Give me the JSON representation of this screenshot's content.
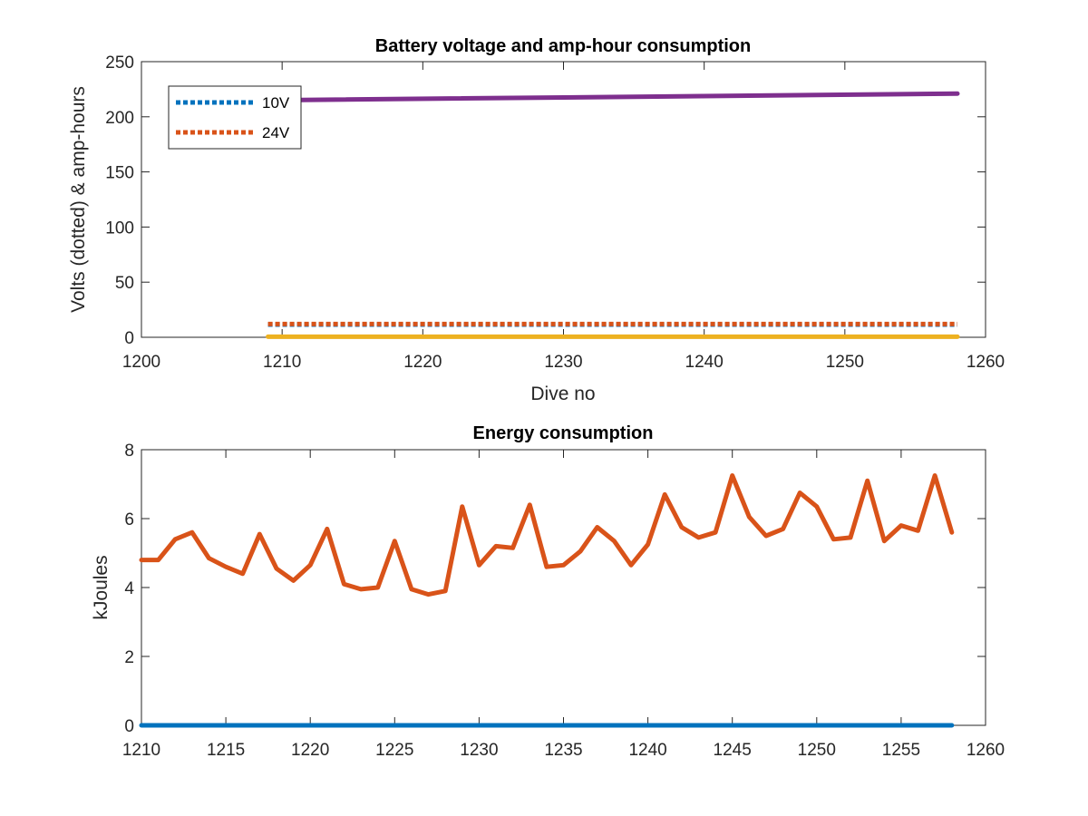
{
  "chart_data": [
    {
      "type": "line",
      "title": "Battery voltage and amp-hour consumption",
      "xlabel": "Dive no",
      "ylabel": "Volts (dotted) & amp-hours",
      "xlim": [
        1200,
        1260
      ],
      "ylim": [
        0,
        250
      ],
      "xticks": [
        "1200",
        "1210",
        "1220",
        "1230",
        "1240",
        "1250",
        "1260"
      ],
      "yticks": [
        "0",
        "50",
        "100",
        "150",
        "200",
        "250"
      ],
      "grid": false,
      "legend": {
        "placement": "top-left",
        "entries": [
          "10V",
          "24V"
        ]
      },
      "series": [
        {
          "name": "10V",
          "style": "dotted",
          "color": "#0072BD",
          "x": [
            1209,
            1258
          ],
          "y": [
            11.5,
            11.5
          ]
        },
        {
          "name": "24V",
          "style": "dotted",
          "color": "#D95319",
          "x": [
            1209,
            1258
          ],
          "y": [
            12,
            12
          ]
        },
        {
          "style": "solid",
          "color": "#EDB120",
          "x": [
            1209,
            1258
          ],
          "y": [
            0.5,
            0.5
          ]
        },
        {
          "style": "solid",
          "color": "#7E2F8E",
          "x": [
            1209,
            1258
          ],
          "y": [
            215,
            221
          ]
        }
      ]
    },
    {
      "type": "line",
      "title": "Energy consumption",
      "xlabel": "",
      "ylabel": "kJoules",
      "xlim": [
        1210,
        1260
      ],
      "ylim": [
        0,
        8
      ],
      "xticks": [
        "1210",
        "1215",
        "1220",
        "1225",
        "1230",
        "1235",
        "1240",
        "1245",
        "1250",
        "1255",
        "1260"
      ],
      "yticks": [
        "0",
        "2",
        "4",
        "6",
        "8"
      ],
      "grid": false,
      "series": [
        {
          "style": "solid",
          "color": "#D95319",
          "x": [
            1210,
            1211,
            1212,
            1213,
            1214,
            1215,
            1216,
            1217,
            1218,
            1219,
            1220,
            1221,
            1222,
            1223,
            1224,
            1225,
            1226,
            1227,
            1228,
            1229,
            1230,
            1231,
            1232,
            1233,
            1234,
            1235,
            1236,
            1237,
            1238,
            1239,
            1240,
            1241,
            1242,
            1243,
            1244,
            1245,
            1246,
            1247,
            1248,
            1249,
            1250,
            1251,
            1252,
            1253,
            1254,
            1255,
            1256,
            1257,
            1258
          ],
          "y": [
            4.8,
            4.8,
            5.4,
            5.6,
            4.85,
            4.6,
            4.4,
            5.55,
            4.55,
            4.2,
            4.65,
            5.7,
            4.1,
            3.95,
            4.0,
            5.35,
            3.95,
            3.8,
            3.9,
            6.35,
            4.65,
            5.2,
            5.15,
            6.4,
            4.6,
            4.65,
            5.05,
            5.75,
            5.35,
            4.65,
            5.25,
            6.7,
            5.75,
            5.45,
            5.6,
            7.25,
            6.05,
            5.5,
            5.7,
            6.75,
            6.35,
            5.4,
            5.45,
            7.1,
            5.35,
            5.8,
            5.65,
            7.25,
            5.6
          ]
        },
        {
          "style": "solid",
          "color": "#0072BD",
          "x": [
            1210,
            1258
          ],
          "y": [
            0,
            0
          ]
        }
      ]
    }
  ]
}
